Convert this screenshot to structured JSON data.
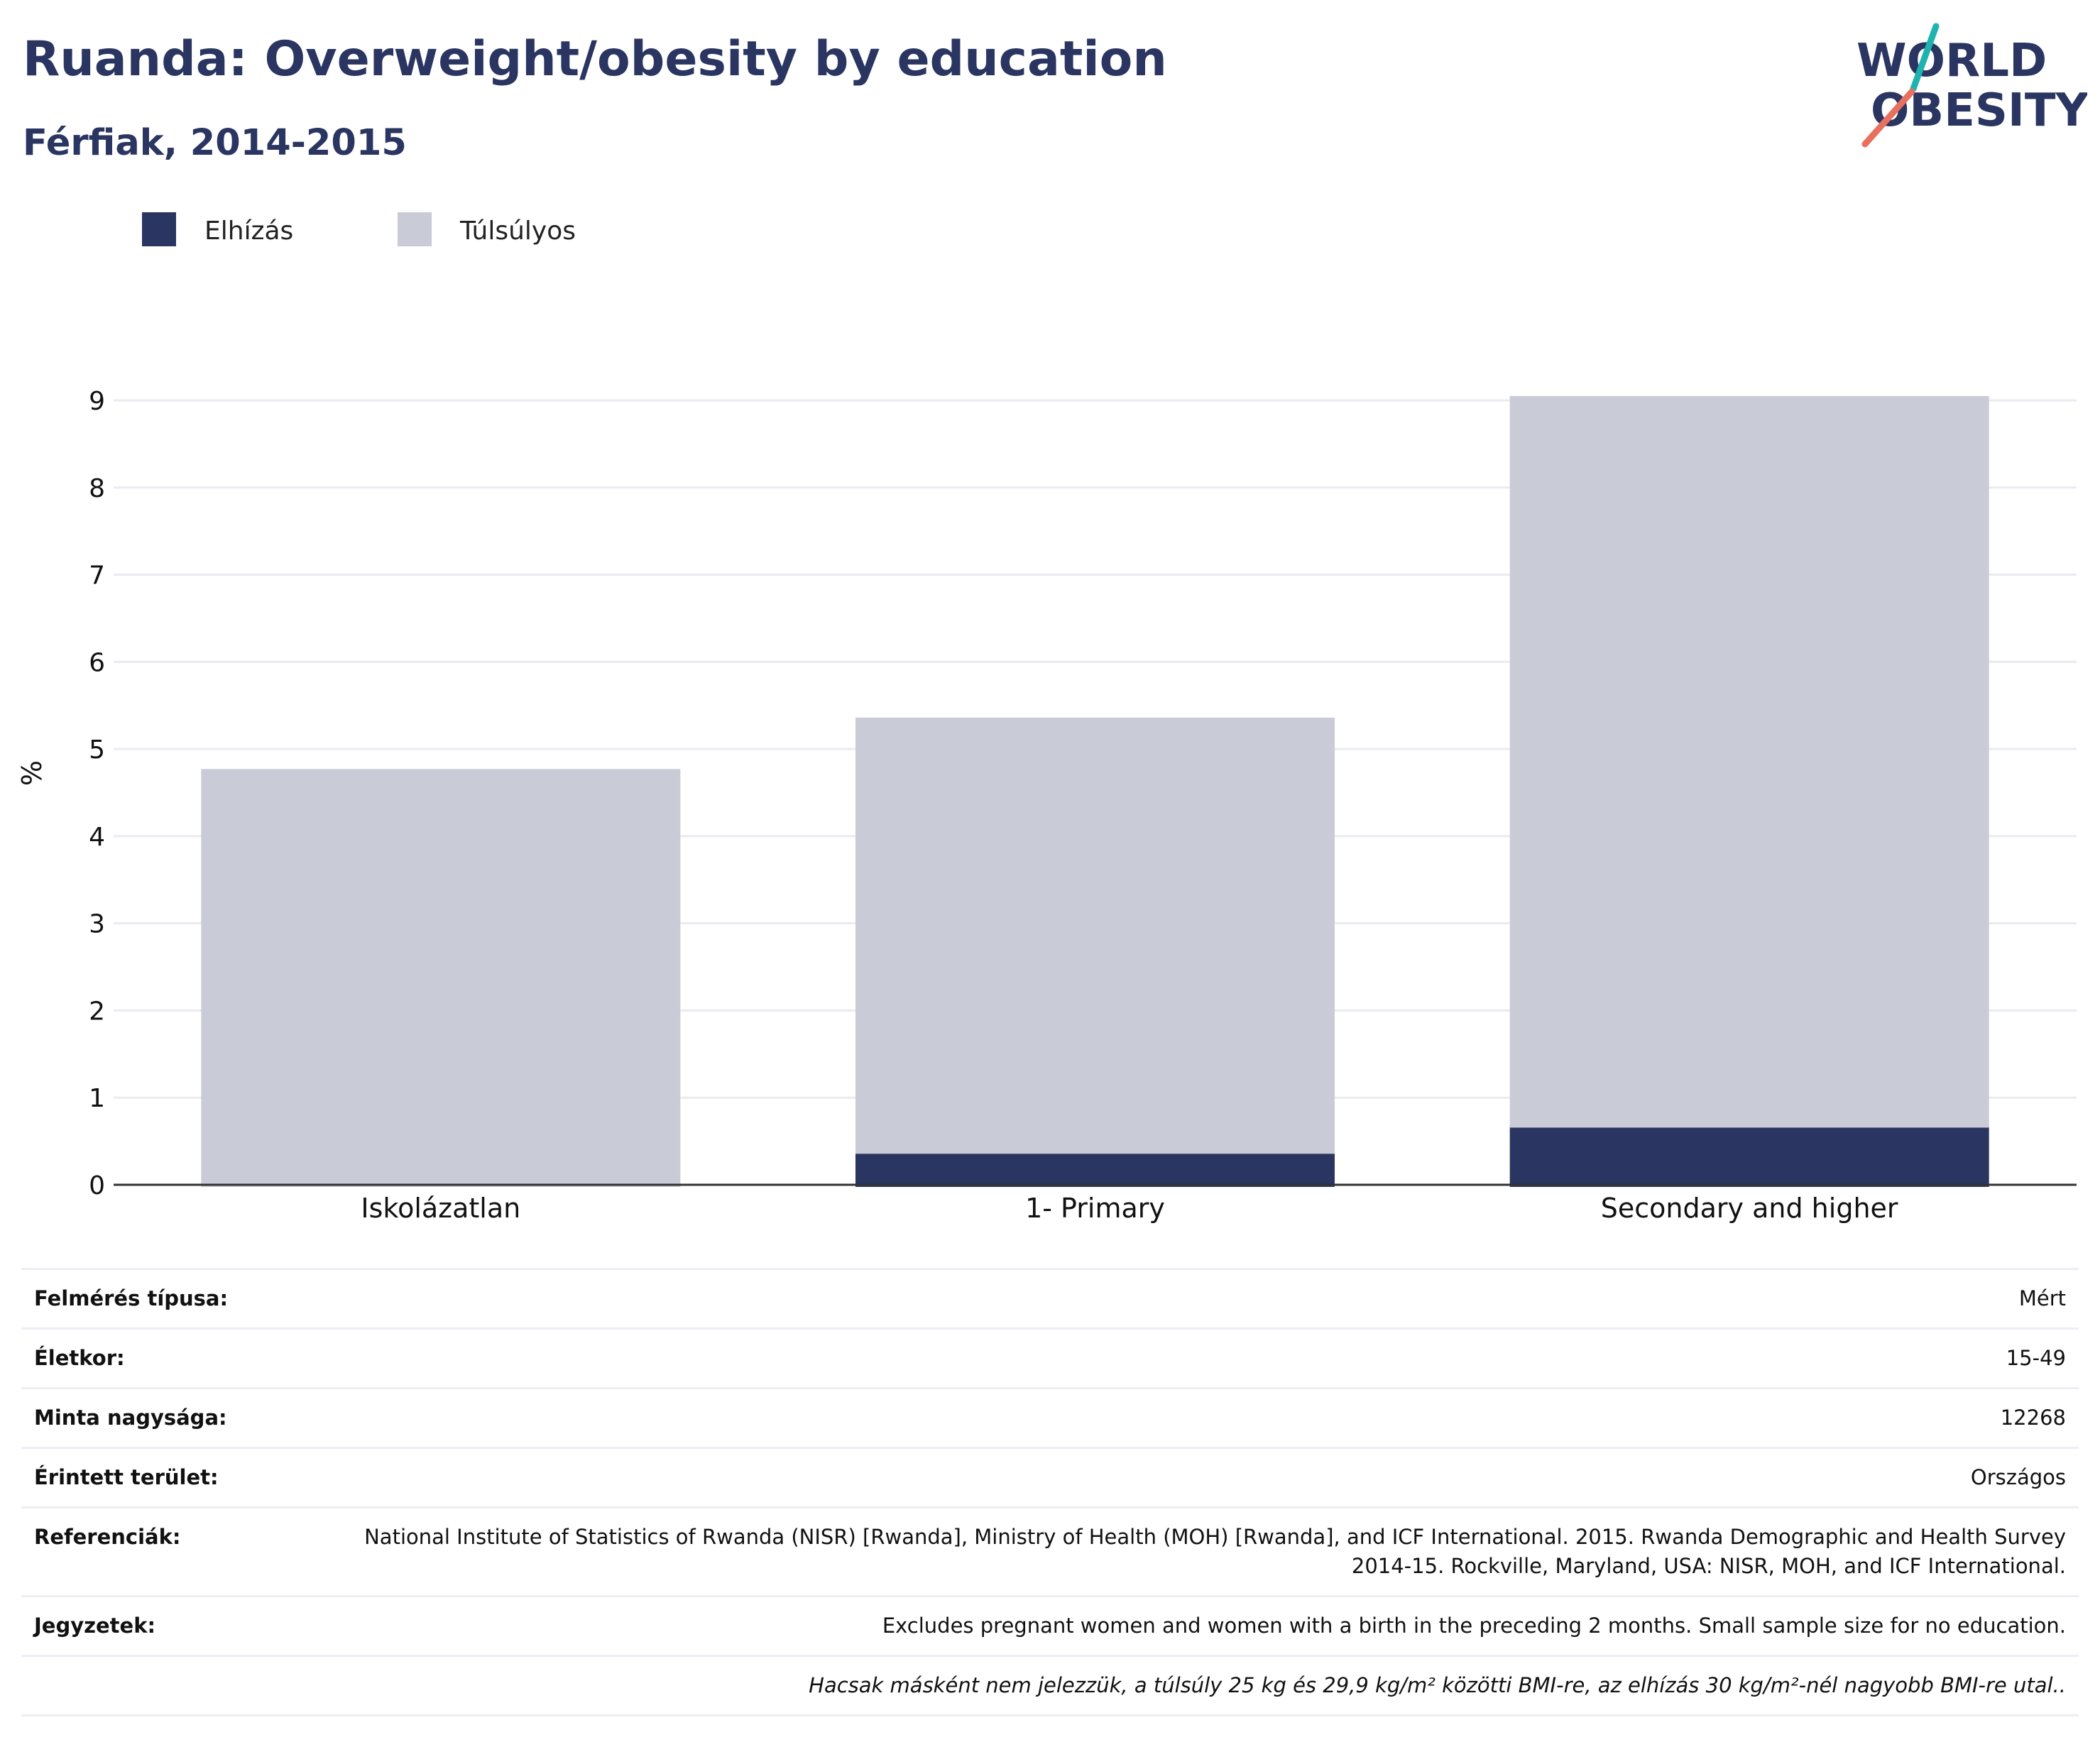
{
  "title": "Ruanda: Overweight/obesity by education",
  "subtitle": "Férfiak, 2014-2015",
  "logo": {
    "line1": "WORLD",
    "line2": "OBESITY",
    "colors": {
      "text": "#2a3561",
      "teal": "#1fb3b0",
      "coral": "#e8705f"
    }
  },
  "chart_data": {
    "type": "bar",
    "stacked": true,
    "categories": [
      "Iskolázatlan",
      "1- Primary",
      "Secondary and higher"
    ],
    "series": [
      {
        "name": "Elhízás",
        "color": "#2a3561",
        "values": [
          0,
          0.38,
          0.68
        ]
      },
      {
        "name": "Túlsúlyos",
        "color": "#c9cbd6",
        "values": [
          4.77,
          4.98,
          8.37
        ]
      }
    ],
    "title": "",
    "xlabel": "",
    "ylabel": "%",
    "ylim": [
      0,
      9
    ],
    "yticks": [
      0,
      1,
      2,
      3,
      4,
      5,
      6,
      7,
      8,
      9
    ],
    "grid": true,
    "legend_position": "top-left"
  },
  "info": {
    "rows": [
      {
        "label": "Felmérés típusa:",
        "value": "Mért"
      },
      {
        "label": "Életkor:",
        "value": "15-49"
      },
      {
        "label": "Minta nagysága:",
        "value": "12268"
      },
      {
        "label": "Érintett terület:",
        "value": "Országos"
      },
      {
        "label": "Referenciák:",
        "value": "National Institute of Statistics of Rwanda (NISR) [Rwanda], Ministry of Health (MOH) [Rwanda], and ICF International. 2015. Rwanda Demographic and Health Survey 2014-15. Rockville, Maryland, USA: NISR, MOH, and ICF International."
      },
      {
        "label": "Jegyzetek:",
        "value": "Excludes pregnant women and women with a birth in the preceding 2 months. Small sample size for no education."
      }
    ],
    "footnote": "Hacsak másként nem jelezzük, a túlsúly 25 kg és 29,9 kg/m² közötti BMI-re, az elhízás 30 kg/m²-nél nagyobb BMI-re utal.."
  }
}
